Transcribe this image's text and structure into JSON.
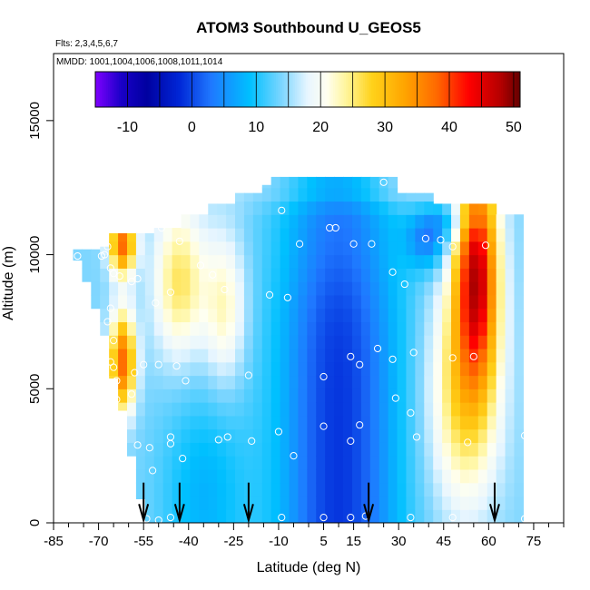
{
  "chart_data": {
    "type": "heatmap",
    "title": "ATOM3 Southbound U_GEOS5",
    "flights_note": "Flts: 2,3,4,5,6,7",
    "mmdd_note": "MMDD: 1001,1004,1006,1008,1011,1014",
    "xlabel": "Latitude (deg N)",
    "ylabel": "Altitude (m)",
    "xlim": [
      -85,
      85
    ],
    "ylim": [
      0,
      17500
    ],
    "x_ticks_labeled": [
      -85,
      -70,
      -55,
      -40,
      -25,
      -10,
      5,
      15,
      30,
      45,
      60,
      75
    ],
    "x_ticks_minor": [
      -80,
      -75,
      -65,
      -60,
      -50,
      -45,
      -35,
      -30,
      -20,
      -15,
      -5,
      0,
      10,
      20,
      25,
      35,
      40,
      50,
      55,
      65,
      70,
      80,
      85
    ],
    "y_ticks": [
      0,
      5000,
      10000,
      15000
    ],
    "colorbar": {
      "range": [
        -15,
        51
      ],
      "tick_values": [
        -10,
        0,
        10,
        20,
        30,
        40,
        50
      ],
      "tick_labels": [
        "-10",
        "0",
        "10",
        "20",
        "30",
        "40",
        "50"
      ],
      "colors": [
        {
          "v": -15,
          "c": "#7f00ff"
        },
        {
          "v": -11,
          "c": "#1a00c8"
        },
        {
          "v": -7,
          "c": "#0000a0"
        },
        {
          "v": -2,
          "c": "#0026d6"
        },
        {
          "v": 3,
          "c": "#1f78ff"
        },
        {
          "v": 9,
          "c": "#00c0ff"
        },
        {
          "v": 14,
          "c": "#7ed6ff"
        },
        {
          "v": 18,
          "c": "#e8f6ff"
        },
        {
          "v": 21,
          "c": "#fffff0"
        },
        {
          "v": 24,
          "c": "#fff59a"
        },
        {
          "v": 28,
          "c": "#ffd21a"
        },
        {
          "v": 33,
          "c": "#ffa500"
        },
        {
          "v": 38,
          "c": "#ff6a00"
        },
        {
          "v": 43,
          "c": "#ff0000"
        },
        {
          "v": 48,
          "c": "#b40000"
        },
        {
          "v": 51,
          "c": "#640000"
        }
      ]
    },
    "flight_markers_lat": [
      -55,
      -43,
      -20,
      20,
      62
    ],
    "field": {
      "lat_bins": [
        -77,
        -74,
        -71,
        -68,
        -65,
        -62,
        -59,
        -56,
        -53,
        -50,
        -47,
        -44,
        -41,
        -38,
        -35,
        -32,
        -29,
        -26,
        -23,
        -20,
        -17,
        -14,
        -11,
        -8,
        -5,
        -2,
        1,
        4,
        7,
        10,
        13,
        16,
        19,
        22,
        25,
        28,
        31,
        34,
        37,
        40,
        43,
        46,
        49,
        52,
        55,
        58,
        61,
        64,
        67,
        70
      ],
      "alt_levels_m": [
        0,
        500,
        1000,
        1500,
        2000,
        2500,
        3000,
        3500,
        4000,
        4500,
        5000,
        5500,
        6000,
        6500,
        7000,
        7500,
        8000,
        8500,
        9000,
        9500,
        10000,
        10500,
        11000,
        11500,
        12000,
        12500
      ],
      "top_m": [
        10200,
        10200,
        10200,
        10300,
        10800,
        10800,
        10800,
        10800,
        10800,
        11000,
        11000,
        11000,
        11500,
        11500,
        11500,
        11900,
        11900,
        11900,
        12300,
        12300,
        12300,
        12600,
        12900,
        12900,
        12900,
        12900,
        12900,
        12900,
        12900,
        12900,
        12900,
        12900,
        12900,
        12900,
        12900,
        12900,
        12300,
        12300,
        12300,
        12300,
        11900,
        11900,
        11900,
        11900,
        11900,
        11900,
        11900,
        11500,
        11500,
        11500
      ],
      "bottom_m": [
        9800,
        9000,
        8000,
        7000,
        5400,
        4200,
        2500,
        900,
        0,
        0,
        0,
        0,
        0,
        0,
        0,
        0,
        0,
        0,
        0,
        0,
        0,
        0,
        0,
        0,
        0,
        0,
        0,
        0,
        0,
        0,
        0,
        0,
        0,
        0,
        0,
        0,
        0,
        0,
        0,
        0,
        0,
        0,
        0,
        0,
        0,
        0,
        0,
        0,
        0,
        0
      ]
    },
    "observations": [
      {
        "lat": -81,
        "alt": 9950
      },
      {
        "lat": -77,
        "alt": 9950
      },
      {
        "lat": -69,
        "alt": 9950
      },
      {
        "lat": -68,
        "alt": 10000
      },
      {
        "lat": -67,
        "alt": 10300
      },
      {
        "lat": -66,
        "alt": 9500
      },
      {
        "lat": -65,
        "alt": 9300
      },
      {
        "lat": -63,
        "alt": 9200
      },
      {
        "lat": -66,
        "alt": 8000
      },
      {
        "lat": -67,
        "alt": 7500
      },
      {
        "lat": -65,
        "alt": 6800
      },
      {
        "lat": -66,
        "alt": 6000
      },
      {
        "lat": -65,
        "alt": 5800
      },
      {
        "lat": -67,
        "alt": 5000
      },
      {
        "lat": -64,
        "alt": 5300
      },
      {
        "lat": -71,
        "alt": 4950
      },
      {
        "lat": -64,
        "alt": 4600
      },
      {
        "lat": -59,
        "alt": 4800
      },
      {
        "lat": -58,
        "alt": 5600
      },
      {
        "lat": -55,
        "alt": 5900
      },
      {
        "lat": -50,
        "alt": 5900
      },
      {
        "lat": -44,
        "alt": 5850
      },
      {
        "lat": -41,
        "alt": 5300
      },
      {
        "lat": -57,
        "alt": 2900
      },
      {
        "lat": -53,
        "alt": 2800
      },
      {
        "lat": -52,
        "alt": 1950
      },
      {
        "lat": -46,
        "alt": 3200
      },
      {
        "lat": -46,
        "alt": 2950
      },
      {
        "lat": -42,
        "alt": 2400
      },
      {
        "lat": -30,
        "alt": 3100
      },
      {
        "lat": -27,
        "alt": 3200
      },
      {
        "lat": -19,
        "alt": 3050
      },
      {
        "lat": -20,
        "alt": 5500
      },
      {
        "lat": -10,
        "alt": 3400
      },
      {
        "lat": -5,
        "alt": 2500
      },
      {
        "lat": 5,
        "alt": 3600
      },
      {
        "lat": 14,
        "alt": 3050
      },
      {
        "lat": 17,
        "alt": 3650
      },
      {
        "lat": 5,
        "alt": 5450
      },
      {
        "lat": 14,
        "alt": 6200
      },
      {
        "lat": 17,
        "alt": 5900
      },
      {
        "lat": 23,
        "alt": 6500
      },
      {
        "lat": 28,
        "alt": 6100
      },
      {
        "lat": 35,
        "alt": 6350
      },
      {
        "lat": 29,
        "alt": 4650
      },
      {
        "lat": 34,
        "alt": 4100
      },
      {
        "lat": 36,
        "alt": 3200
      },
      {
        "lat": 48,
        "alt": 6150
      },
      {
        "lat": 55,
        "alt": 6200
      },
      {
        "lat": 53,
        "alt": 3000
      },
      {
        "lat": 72,
        "alt": 3250
      },
      {
        "lat": -43,
        "alt": 10500
      },
      {
        "lat": -49,
        "alt": 11000
      },
      {
        "lat": -36,
        "alt": 9600
      },
      {
        "lat": -32,
        "alt": 9250
      },
      {
        "lat": -28,
        "alt": 8700
      },
      {
        "lat": -46,
        "alt": 8600
      },
      {
        "lat": -51,
        "alt": 8200
      },
      {
        "lat": -57,
        "alt": 9100
      },
      {
        "lat": -59,
        "alt": 9000
      },
      {
        "lat": -13,
        "alt": 8500
      },
      {
        "lat": -7,
        "alt": 8400
      },
      {
        "lat": -9,
        "alt": 11650
      },
      {
        "lat": -3,
        "alt": 10400
      },
      {
        "lat": 7,
        "alt": 11000
      },
      {
        "lat": 9,
        "alt": 11000
      },
      {
        "lat": 15,
        "alt": 10400
      },
      {
        "lat": 21,
        "alt": 10400
      },
      {
        "lat": 25,
        "alt": 12700
      },
      {
        "lat": 28,
        "alt": 9350
      },
      {
        "lat": 32,
        "alt": 8900
      },
      {
        "lat": 39,
        "alt": 10600
      },
      {
        "lat": 44,
        "alt": 10550
      },
      {
        "lat": 48,
        "alt": 10300
      },
      {
        "lat": 59,
        "alt": 10350
      },
      {
        "lat": -67,
        "alt": 200
      },
      {
        "lat": -63,
        "alt": 250
      },
      {
        "lat": -54,
        "alt": 150
      },
      {
        "lat": -50,
        "alt": 100
      },
      {
        "lat": -46,
        "alt": 200
      },
      {
        "lat": -9,
        "alt": 200
      },
      {
        "lat": 5,
        "alt": 200
      },
      {
        "lat": 14,
        "alt": 200
      },
      {
        "lat": 19,
        "alt": 250
      },
      {
        "lat": 34,
        "alt": 200
      },
      {
        "lat": 48,
        "alt": 200
      },
      {
        "lat": 72,
        "alt": 150
      }
    ]
  }
}
